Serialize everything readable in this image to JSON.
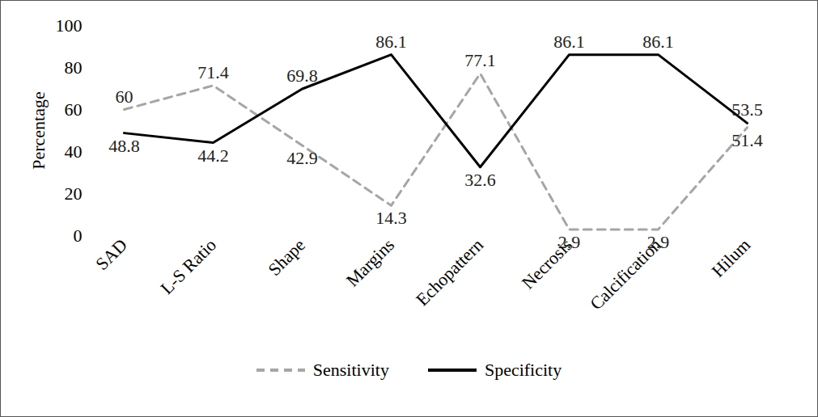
{
  "chart_data": {
    "type": "line",
    "y_label": "Percentage",
    "categories": [
      "SAD",
      "L-S Ratio",
      "Shape",
      "Margins",
      "Echopattern",
      "Necrosis",
      "Calcification",
      "Hilum"
    ],
    "series": [
      {
        "name": "Sensitivity",
        "color": "#a6a6a6",
        "line_style": "dashed",
        "values": [
          60,
          71.4,
          42.9,
          14.3,
          77.1,
          2.9,
          2.9,
          51.4
        ]
      },
      {
        "name": "Specificity",
        "color": "#000000",
        "line_style": "solid",
        "values": [
          48.8,
          44.2,
          69.8,
          86.1,
          32.6,
          86.1,
          86.1,
          53.5
        ]
      }
    ],
    "ylim": [
      0,
      100
    ],
    "yticks": [
      0,
      20,
      40,
      60,
      80,
      100
    ],
    "grid": false,
    "legend": "bottom",
    "data_labels": true
  }
}
